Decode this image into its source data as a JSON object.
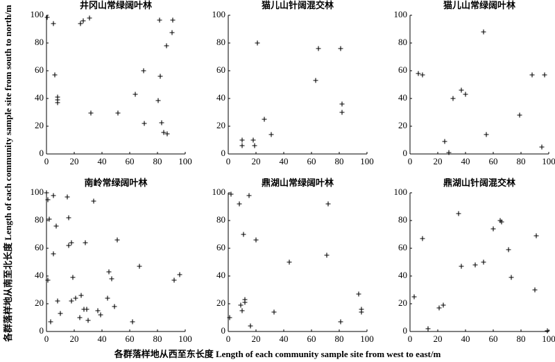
{
  "ylabel": "各群落样地从南至北长度 Length of each community sample site from south to north/m",
  "xlabel": "各群落样地从西至东长度 Length of each community sample site from west to east/m",
  "chart_data": [
    {
      "type": "scatter",
      "title": "井冈山常绿阔叶林",
      "color": "#000000",
      "x": [
        0.5,
        5,
        6,
        8,
        8,
        8,
        24.5,
        26.5,
        31,
        32,
        51.5,
        64,
        70,
        70.5,
        80.5,
        81.5,
        82,
        83,
        84.5,
        86.5,
        87,
        91,
        90.5
      ],
      "values": [
        98.5,
        94,
        57,
        41,
        39,
        37,
        94,
        96,
        98,
        29.5,
        29.5,
        43,
        60,
        22,
        38.5,
        96.5,
        56,
        22.5,
        15.5,
        78,
        14.5,
        96.5,
        87.5
      ],
      "xlim": [
        0,
        100
      ],
      "ylim": [
        0,
        100
      ],
      "xticks": [
        0,
        20,
        40,
        60,
        80,
        100
      ],
      "yticks": [
        0,
        20,
        40,
        60,
        80,
        100
      ]
    },
    {
      "type": "scatter",
      "title": "猫儿山针阔混交林",
      "color": "#000000",
      "x": [
        10,
        10,
        18,
        19,
        21,
        26,
        31,
        63,
        65,
        81,
        82,
        82
      ],
      "values": [
        6,
        10,
        10,
        6,
        80,
        25,
        14,
        53,
        76,
        76,
        36,
        30
      ],
      "xlim": [
        0,
        100
      ],
      "ylim": [
        0,
        100
      ],
      "xticks": [
        0,
        20,
        40,
        60,
        80,
        100
      ],
      "yticks": [
        0,
        20,
        40,
        60,
        80,
        100
      ]
    },
    {
      "type": "scatter",
      "title": "猫儿山常绿阔叶林",
      "color": "#000000",
      "x": [
        6,
        9,
        25,
        28,
        31,
        37,
        40,
        53,
        55,
        79,
        88,
        95,
        97
      ],
      "values": [
        58,
        57,
        9,
        1,
        40,
        46,
        43,
        88,
        14,
        28,
        57,
        5,
        57
      ],
      "xlim": [
        0,
        100
      ],
      "ylim": [
        0,
        100
      ],
      "xticks": [
        0,
        20,
        40,
        60,
        80,
        100
      ],
      "yticks": [
        0,
        20,
        40,
        60,
        80,
        100
      ]
    },
    {
      "type": "scatter",
      "title": "南岭常绿阔叶林",
      "color": "#000000",
      "x": [
        0,
        1,
        2,
        5,
        5,
        7,
        1,
        3,
        8,
        10,
        15,
        16,
        16,
        18,
        18,
        19,
        21,
        24,
        25,
        27,
        28,
        29,
        30,
        34,
        37,
        39,
        44,
        45,
        47,
        49,
        51,
        67,
        62,
        92,
        96
      ],
      "values": [
        100,
        95,
        81,
        98,
        56,
        76,
        37,
        7,
        22,
        13,
        97,
        82,
        62,
        64,
        22,
        39,
        24,
        10,
        26,
        16,
        64,
        16,
        8,
        94,
        15,
        12,
        24,
        43,
        38,
        18,
        66,
        47,
        7,
        37,
        41
      ],
      "xlim": [
        0,
        100
      ],
      "ylim": [
        0,
        100
      ],
      "xticks": [
        0,
        20,
        40,
        60,
        80,
        100
      ],
      "yticks": [
        0,
        20,
        40,
        60,
        80,
        100
      ]
    },
    {
      "type": "scatter",
      "title": "鼎湖山常绿阔叶林",
      "color": "#000000",
      "x": [
        1,
        2,
        8,
        9,
        10,
        11,
        12,
        12,
        15,
        16,
        20,
        33,
        44,
        71,
        72,
        81,
        94,
        96,
        96
      ],
      "values": [
        10,
        99,
        92,
        19,
        15,
        70,
        23,
        21,
        98,
        4,
        66,
        14,
        50,
        55,
        92,
        7,
        27,
        16,
        14
      ],
      "xlim": [
        0,
        100
      ],
      "ylim": [
        0,
        100
      ],
      "xticks": [
        0,
        20,
        40,
        60,
        80,
        100
      ],
      "yticks": [
        0,
        20,
        40,
        60,
        80,
        100
      ]
    },
    {
      "type": "scatter",
      "title": "鼎湖山针阔混交林",
      "color": "#000000",
      "x": [
        3,
        9,
        13,
        21,
        24,
        35,
        37,
        47,
        53,
        60,
        65,
        66,
        71,
        73,
        90,
        91,
        99
      ],
      "values": [
        25,
        67,
        2,
        17,
        19,
        85,
        47,
        48,
        50,
        74,
        80,
        79,
        59,
        39,
        30,
        69,
        0.5
      ],
      "xlim": [
        0,
        100
      ],
      "ylim": [
        0,
        100
      ],
      "xticks": [
        0,
        20,
        40,
        60,
        80,
        100
      ],
      "yticks": [
        0,
        20,
        40,
        60,
        80,
        100
      ]
    }
  ]
}
